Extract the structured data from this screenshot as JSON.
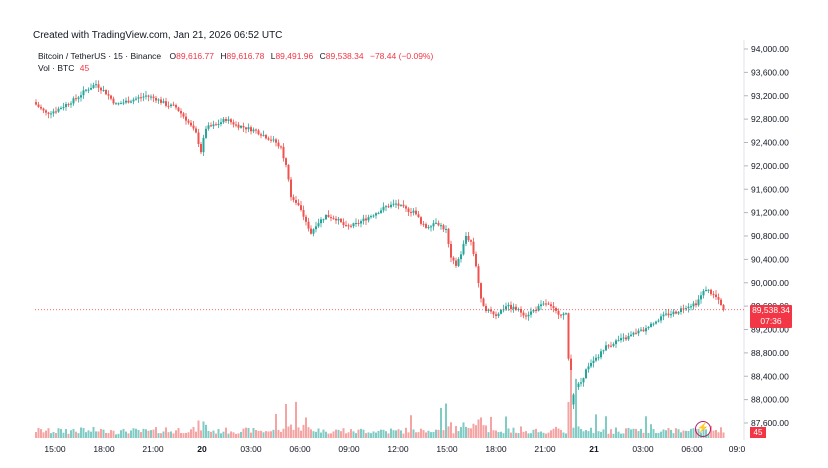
{
  "header": {
    "created": "Created with TradingView.com, Jan 21, 2026 06:52 UTC"
  },
  "legend": {
    "symbol": "Bitcoin / TetherUS · 15 · Binance",
    "o_label": "O",
    "o_value": "89,616.77",
    "h_label": "H",
    "h_value": "89,616.78",
    "l_label": "L",
    "l_value": "89,491.96",
    "c_label": "C",
    "c_value": "89,538.34",
    "change": "−78.44 (−0.09%)",
    "vol_label": "Vol · BTC",
    "vol_value": "45"
  },
  "price_badge": {
    "price": "89,538.34",
    "countdown": "07:36"
  },
  "volume_badge": "45",
  "icons": {
    "logo": "tradingview-logo-icon"
  },
  "colors": {
    "up": "#26a69a",
    "down": "#ef5350",
    "up_vol": "#80cbc4",
    "down_vol": "#f5a3a3",
    "badge": "#f23645"
  },
  "chart_data": {
    "type": "candlestick",
    "y_ticks": [
      "94,000.00",
      "93,600.00",
      "93,200.00",
      "92,800.00",
      "92,400.00",
      "92,000.00",
      "91,600.00",
      "91,200.00",
      "90,800.00",
      "90,400.00",
      "90,000.00",
      "89,600.00",
      "89,200.00",
      "88,800.00",
      "88,400.00",
      "88,000.00",
      "87,600.00"
    ],
    "x_ticks": [
      "15:00",
      "18:00",
      "21:00",
      "20",
      "03:00",
      "06:00",
      "09:00",
      "12:00",
      "15:00",
      "18:00",
      "21:00",
      "21",
      "03:00",
      "06:00",
      "09:0"
    ],
    "ylim": [
      87600,
      94000
    ],
    "last_price": 89538.34,
    "close_path": [
      [
        0,
        93050
      ],
      [
        4,
        92900
      ],
      [
        8,
        92950
      ],
      [
        12,
        93050
      ],
      [
        16,
        93150
      ],
      [
        20,
        93300
      ],
      [
        24,
        93400
      ],
      [
        28,
        93250
      ],
      [
        32,
        93050
      ],
      [
        36,
        93100
      ],
      [
        40,
        93150
      ],
      [
        44,
        93200
      ],
      [
        48,
        93150
      ],
      [
        52,
        93050
      ],
      [
        56,
        93000
      ],
      [
        60,
        92800
      ],
      [
        64,
        92550
      ],
      [
        66,
        92250
      ],
      [
        68,
        92650
      ],
      [
        72,
        92700
      ],
      [
        76,
        92800
      ],
      [
        80,
        92700
      ],
      [
        84,
        92650
      ],
      [
        88,
        92600
      ],
      [
        92,
        92500
      ],
      [
        96,
        92400
      ],
      [
        98,
        92300
      ],
      [
        100,
        92000
      ],
      [
        102,
        91500
      ],
      [
        104,
        91400
      ],
      [
        108,
        91050
      ],
      [
        110,
        90850
      ],
      [
        112,
        91000
      ],
      [
        116,
        91150
      ],
      [
        120,
        91100
      ],
      [
        124,
        90950
      ],
      [
        128,
        91000
      ],
      [
        132,
        91100
      ],
      [
        136,
        91200
      ],
      [
        140,
        91300
      ],
      [
        144,
        91350
      ],
      [
        148,
        91250
      ],
      [
        152,
        91200
      ],
      [
        154,
        91000
      ],
      [
        156,
        90950
      ],
      [
        158,
        91000
      ],
      [
        160,
        91050
      ],
      [
        164,
        90900
      ],
      [
        166,
        90400
      ],
      [
        168,
        90300
      ],
      [
        170,
        90500
      ],
      [
        172,
        90800
      ],
      [
        174,
        90700
      ],
      [
        176,
        90300
      ],
      [
        178,
        89700
      ],
      [
        180,
        89550
      ],
      [
        184,
        89450
      ],
      [
        188,
        89600
      ],
      [
        192,
        89550
      ],
      [
        196,
        89450
      ],
      [
        200,
        89550
      ],
      [
        204,
        89650
      ],
      [
        208,
        89500
      ],
      [
        212,
        89450
      ],
      [
        214,
        87950
      ],
      [
        216,
        88200
      ],
      [
        218,
        88300
      ],
      [
        220,
        88500
      ],
      [
        224,
        88700
      ],
      [
        228,
        88900
      ],
      [
        232,
        89000
      ],
      [
        236,
        89050
      ],
      [
        240,
        89150
      ],
      [
        244,
        89200
      ],
      [
        248,
        89350
      ],
      [
        252,
        89450
      ],
      [
        256,
        89500
      ],
      [
        260,
        89600
      ],
      [
        264,
        89650
      ],
      [
        268,
        89900
      ],
      [
        272,
        89750
      ],
      [
        275,
        89538
      ]
    ],
    "volume_spikes": [
      [
        96,
        2.1
      ],
      [
        104,
        3.2
      ],
      [
        100,
        2.4
      ],
      [
        108,
        1.6
      ],
      [
        150,
        2.4
      ],
      [
        162,
        3.3
      ],
      [
        164,
        3.7
      ],
      [
        182,
        2.0
      ],
      [
        188,
        1.9
      ],
      [
        214,
        3.6
      ],
      [
        216,
        4.0
      ],
      [
        224,
        2.1
      ],
      [
        228,
        1.7
      ],
      [
        244,
        1.9
      ],
      [
        246,
        1.2
      ]
    ]
  }
}
